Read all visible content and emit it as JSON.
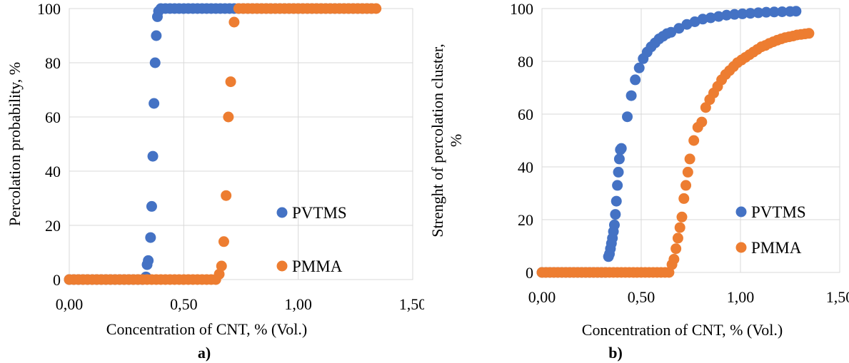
{
  "colors": {
    "PVTMS": "#4472C4",
    "PMMA": "#ED7D31",
    "grid": "#d9d9d9"
  },
  "chart_data": [
    {
      "type": "scatter",
      "caption": "a)",
      "xlabel": "Concentration of CNT, % (Vol.)",
      "ylabel": "Percolation probability, %",
      "xlim": [
        0,
        1.5
      ],
      "ylim": [
        0,
        100
      ],
      "xticks": [
        "0,00",
        "0,50",
        "1,00",
        "1,50"
      ],
      "xtick_values": [
        0,
        0.5,
        1.0,
        1.5
      ],
      "yticks": [
        "0",
        "20",
        "40",
        "60",
        "80",
        "100"
      ],
      "ytick_values": [
        0,
        20,
        40,
        60,
        80,
        100
      ],
      "grid": true,
      "legend_position": "bottom-right",
      "series": [
        {
          "name": "PVTMS",
          "color": "#4472C4",
          "x": [
            0.0,
            0.02,
            0.04,
            0.06,
            0.08,
            0.1,
            0.12,
            0.14,
            0.16,
            0.18,
            0.2,
            0.22,
            0.24,
            0.26,
            0.28,
            0.3,
            0.32,
            0.335,
            0.34,
            0.345,
            0.355,
            0.36,
            0.365,
            0.37,
            0.375,
            0.38,
            0.385,
            0.39,
            0.4,
            0.42,
            0.44,
            0.46,
            0.48,
            0.5,
            0.52,
            0.54,
            0.56,
            0.58,
            0.6,
            0.62,
            0.64,
            0.66,
            0.68,
            0.7,
            0.72,
            0.74,
            0.76,
            0.78,
            0.8,
            0.82,
            0.84,
            0.86,
            0.88,
            0.9,
            0.92,
            0.94,
            0.96,
            0.98,
            1.0,
            1.02,
            1.04,
            1.06,
            1.08,
            1.1,
            1.12,
            1.14,
            1.16,
            1.18,
            1.2,
            1.22,
            1.24,
            1.26,
            1.28,
            1.3,
            1.32
          ],
          "y": [
            0,
            0,
            0,
            0,
            0,
            0,
            0,
            0,
            0,
            0,
            0,
            0,
            0,
            0,
            0,
            0,
            0,
            1,
            5.5,
            7,
            15.5,
            27,
            45.5,
            65,
            80,
            90,
            97,
            99,
            100,
            100,
            100,
            100,
            100,
            100,
            100,
            100,
            100,
            100,
            100,
            100,
            100,
            100,
            100,
            100,
            100,
            100,
            100,
            100,
            100,
            100,
            100,
            100,
            100,
            100,
            100,
            100,
            100,
            100,
            100,
            100,
            100,
            100,
            100,
            100,
            100,
            100,
            100,
            100,
            100,
            100,
            100,
            100,
            100,
            100,
            100
          ]
        },
        {
          "name": "PMMA",
          "color": "#ED7D31",
          "x": [
            0.0,
            0.02,
            0.04,
            0.06,
            0.08,
            0.1,
            0.12,
            0.14,
            0.16,
            0.18,
            0.2,
            0.22,
            0.24,
            0.26,
            0.28,
            0.3,
            0.32,
            0.34,
            0.36,
            0.38,
            0.4,
            0.42,
            0.44,
            0.46,
            0.48,
            0.5,
            0.52,
            0.54,
            0.56,
            0.58,
            0.6,
            0.62,
            0.64,
            0.655,
            0.665,
            0.675,
            0.685,
            0.695,
            0.705,
            0.72,
            0.74,
            0.76,
            0.78,
            0.8,
            0.82,
            0.84,
            0.86,
            0.88,
            0.9,
            0.92,
            0.94,
            0.96,
            0.98,
            1.0,
            1.02,
            1.04,
            1.06,
            1.08,
            1.1,
            1.12,
            1.14,
            1.16,
            1.18,
            1.2,
            1.22,
            1.24,
            1.26,
            1.28,
            1.3,
            1.32,
            1.34
          ],
          "y": [
            0,
            0,
            0,
            0,
            0,
            0,
            0,
            0,
            0,
            0,
            0,
            0,
            0,
            0,
            0,
            0,
            0,
            0,
            0,
            0,
            0,
            0,
            0,
            0,
            0,
            0,
            0,
            0,
            0,
            0,
            0,
            0,
            0,
            2,
            5,
            14,
            31,
            60,
            73,
            95,
            100,
            100,
            100,
            100,
            100,
            100,
            100,
            100,
            100,
            100,
            100,
            100,
            100,
            100,
            100,
            100,
            100,
            100,
            100,
            100,
            100,
            100,
            100,
            100,
            100,
            100,
            100,
            100,
            100,
            100,
            100
          ]
        }
      ]
    },
    {
      "type": "scatter",
      "caption": "b)",
      "xlabel": "Concentration of CNT, % (Vol.)",
      "ylabel_lines": [
        "Strenght of percolation cluster,",
        "%"
      ],
      "xlim": [
        0,
        1.5
      ],
      "ylim": [
        0,
        100
      ],
      "xticks": [
        "0,00",
        "0,50",
        "1,00",
        "1,50"
      ],
      "xtick_values": [
        0,
        0.5,
        1.0,
        1.5
      ],
      "yticks": [
        "0",
        "20",
        "40",
        "60",
        "80",
        "100"
      ],
      "ytick_values": [
        0,
        20,
        40,
        60,
        80,
        100
      ],
      "grid": true,
      "legend_position": "bottom-right",
      "series": [
        {
          "name": "PVTMS",
          "color": "#4472C4",
          "x": [
            0.0,
            0.02,
            0.04,
            0.06,
            0.08,
            0.1,
            0.12,
            0.14,
            0.16,
            0.18,
            0.2,
            0.22,
            0.24,
            0.26,
            0.28,
            0.3,
            0.32,
            0.335,
            0.34,
            0.345,
            0.35,
            0.355,
            0.36,
            0.365,
            0.37,
            0.375,
            0.38,
            0.385,
            0.39,
            0.395,
            0.4,
            0.43,
            0.45,
            0.47,
            0.49,
            0.51,
            0.53,
            0.55,
            0.57,
            0.59,
            0.61,
            0.63,
            0.65,
            0.69,
            0.73,
            0.77,
            0.81,
            0.85,
            0.89,
            0.93,
            0.97,
            1.01,
            1.05,
            1.09,
            1.13,
            1.17,
            1.21,
            1.25,
            1.28
          ],
          "y": [
            0,
            0,
            0,
            0,
            0,
            0,
            0,
            0,
            0,
            0,
            0,
            0,
            0,
            0,
            0,
            0,
            0,
            6,
            7,
            9,
            11,
            13,
            15.5,
            18,
            22,
            27,
            33,
            38,
            43,
            46.5,
            47,
            59,
            67,
            73,
            77.5,
            81,
            83.5,
            85.5,
            87,
            88.5,
            89.5,
            90.5,
            91,
            92.5,
            94,
            95,
            96,
            96.5,
            97,
            97.5,
            97.8,
            98,
            98.2,
            98.4,
            98.6,
            98.7,
            98.8,
            98.9,
            99
          ]
        },
        {
          "name": "PMMA",
          "color": "#ED7D31",
          "x": [
            0.0,
            0.02,
            0.04,
            0.06,
            0.08,
            0.1,
            0.12,
            0.14,
            0.16,
            0.18,
            0.2,
            0.22,
            0.24,
            0.26,
            0.28,
            0.3,
            0.32,
            0.34,
            0.36,
            0.38,
            0.4,
            0.42,
            0.44,
            0.46,
            0.48,
            0.5,
            0.52,
            0.54,
            0.56,
            0.58,
            0.6,
            0.62,
            0.64,
            0.655,
            0.665,
            0.675,
            0.685,
            0.695,
            0.705,
            0.715,
            0.725,
            0.735,
            0.745,
            0.765,
            0.785,
            0.805,
            0.825,
            0.845,
            0.865,
            0.885,
            0.905,
            0.925,
            0.945,
            0.965,
            0.985,
            1.005,
            1.025,
            1.045,
            1.065,
            1.085,
            1.105,
            1.125,
            1.145,
            1.165,
            1.185,
            1.205,
            1.225,
            1.245,
            1.265,
            1.285,
            1.305,
            1.325,
            1.345
          ],
          "y": [
            0,
            0,
            0,
            0,
            0,
            0,
            0,
            0,
            0,
            0,
            0,
            0,
            0,
            0,
            0,
            0,
            0,
            0,
            0,
            0,
            0,
            0,
            0,
            0,
            0,
            0,
            0,
            0,
            0,
            0,
            0,
            0,
            0,
            3,
            5,
            9,
            13,
            17,
            21,
            28,
            33,
            38,
            43,
            50,
            55,
            57,
            62.5,
            65.5,
            68,
            70.5,
            73,
            75,
            76.5,
            78,
            79.5,
            80.5,
            81.5,
            82.5,
            83.5,
            84.5,
            85.5,
            86,
            86.8,
            87.4,
            88,
            88.5,
            89,
            89.3,
            89.6,
            90,
            90.2,
            90.4,
            90.6
          ]
        }
      ]
    }
  ]
}
